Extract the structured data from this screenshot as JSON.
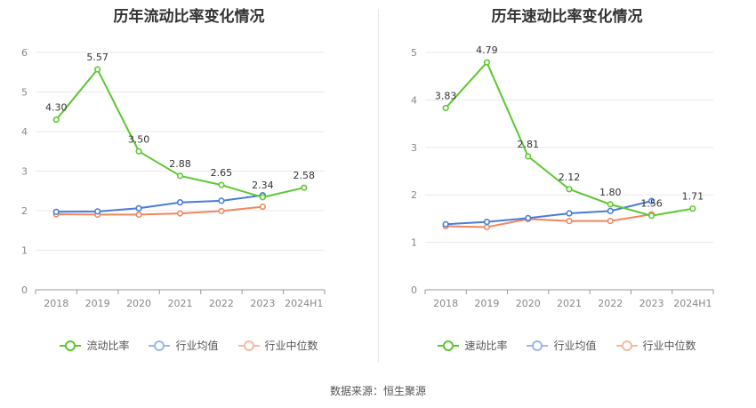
{
  "charts": [
    {
      "title": "历年流动比率变化情况",
      "legend": [
        "流动比率",
        "行业均值",
        "行业中位数"
      ]
    },
    {
      "title": "历年速动比率变化情况",
      "legend": [
        "速动比率",
        "行业均值",
        "行业中位数"
      ]
    }
  ],
  "source": "数据来源：恒生聚源",
  "colors": {
    "main": "#5cc72f",
    "avg": "#4a7cd8",
    "median": "#f0875e",
    "grid": "#e8e8e8",
    "axis": "#888888"
  },
  "chart_data": [
    {
      "type": "line",
      "title": "历年流动比率变化情况",
      "categories": [
        "2018",
        "2019",
        "2020",
        "2021",
        "2022",
        "2023",
        "2024H1"
      ],
      "ylim": [
        0,
        6
      ],
      "yticks": [
        0,
        1,
        2,
        3,
        4,
        5,
        6
      ],
      "grid": true,
      "legend_position": "bottom",
      "series": [
        {
          "name": "流动比率",
          "values": [
            4.3,
            5.57,
            3.5,
            2.88,
            2.65,
            2.34,
            2.58
          ],
          "labels": [
            "4.30",
            "5.57",
            "3.50",
            "2.88",
            "2.65",
            "2.34",
            "2.58"
          ]
        },
        {
          "name": "行业均值",
          "values": [
            1.97,
            1.98,
            2.06,
            2.21,
            2.25,
            2.39,
            null
          ]
        },
        {
          "name": "行业中位数",
          "values": [
            1.91,
            1.9,
            1.9,
            1.93,
            1.99,
            2.1,
            null
          ]
        }
      ]
    },
    {
      "type": "line",
      "title": "历年速动比率变化情况",
      "categories": [
        "2018",
        "2019",
        "2020",
        "2021",
        "2022",
        "2023",
        "2024H1"
      ],
      "ylim": [
        0,
        5
      ],
      "yticks": [
        0,
        1,
        2,
        3,
        4,
        5
      ],
      "grid": true,
      "legend_position": "bottom",
      "series": [
        {
          "name": "速动比率",
          "values": [
            3.83,
            4.79,
            2.81,
            2.12,
            1.8,
            1.56,
            1.71
          ],
          "labels": [
            "3.83",
            "4.79",
            "2.81",
            "2.12",
            "1.80",
            "1.56",
            "1.71"
          ]
        },
        {
          "name": "行业均值",
          "values": [
            1.38,
            1.43,
            1.51,
            1.61,
            1.66,
            1.87,
            null
          ]
        },
        {
          "name": "行业中位数",
          "values": [
            1.34,
            1.32,
            1.49,
            1.45,
            1.45,
            1.59,
            null
          ]
        }
      ]
    }
  ]
}
